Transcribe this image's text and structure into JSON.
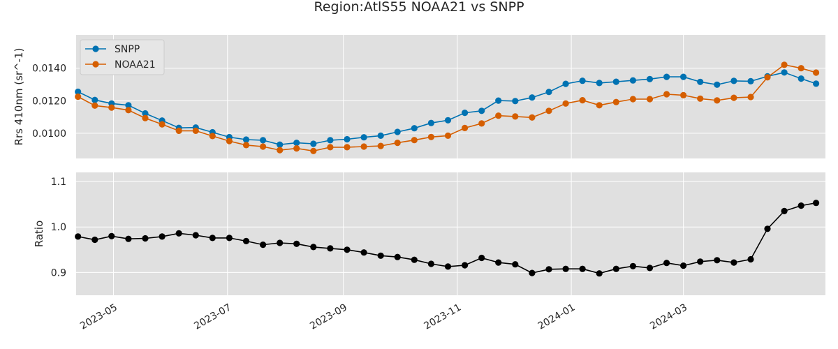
{
  "title": "Region:AtlS55 NOAA21 vs SNPP",
  "colors": {
    "panel_bg": "#e0e0e0",
    "grid": "#ffffff",
    "snpp": "#0072b2",
    "noaa21": "#d55e00",
    "ratio": "#000000"
  },
  "chart_data": [
    {
      "type": "line",
      "ylabel": "Rrs 410nm (sr^-1)",
      "yticks": [
        "0.0100",
        "0.0120",
        "0.0140"
      ],
      "ylim": [
        0.00845,
        0.01605
      ],
      "grid": true,
      "legend_position": "top-left",
      "x": [
        "2023-04-12",
        "2023-04-21",
        "2023-04-30",
        "2023-05-09",
        "2023-05-18",
        "2023-05-27",
        "2023-06-05",
        "2023-06-14",
        "2023-06-23",
        "2023-07-02",
        "2023-07-11",
        "2023-07-20",
        "2023-07-29",
        "2023-08-07",
        "2023-08-16",
        "2023-08-25",
        "2023-09-03",
        "2023-09-12",
        "2023-09-21",
        "2023-09-30",
        "2023-10-09",
        "2023-10-18",
        "2023-10-27",
        "2023-11-05",
        "2023-11-14",
        "2023-11-23",
        "2023-12-02",
        "2023-12-11",
        "2023-12-20",
        "2023-12-29",
        "2024-01-07",
        "2024-01-16",
        "2024-01-25",
        "2024-02-03",
        "2024-02-12",
        "2024-02-21",
        "2024-03-01",
        "2024-03-10",
        "2024-03-19",
        "2024-03-28",
        "2024-04-06",
        "2024-04-15",
        "2024-04-24",
        "2024-05-03",
        "2024-05-11"
      ],
      "series": [
        {
          "name": "SNPP",
          "color": "#0072b2",
          "values": [
            0.01255,
            0.01205,
            0.01183,
            0.01172,
            0.01122,
            0.01078,
            0.01033,
            0.01035,
            0.01006,
            0.00976,
            0.00961,
            0.00957,
            0.0093,
            0.00941,
            0.00935,
            0.00957,
            0.00963,
            0.00975,
            0.00985,
            0.01008,
            0.01031,
            0.01063,
            0.0108,
            0.01126,
            0.01138,
            0.01201,
            0.01198,
            0.0122,
            0.01254,
            0.01304,
            0.01323,
            0.01309,
            0.01317,
            0.01325,
            0.01333,
            0.01347,
            0.01347,
            0.01316,
            0.01299,
            0.01322,
            0.0132,
            0.0135,
            0.01374,
            0.01336,
            0.01305
          ]
        },
        {
          "name": "NOAA21",
          "color": "#d55e00",
          "values": [
            0.01225,
            0.0117,
            0.01158,
            0.01142,
            0.01093,
            0.01055,
            0.01015,
            0.01015,
            0.00983,
            0.00952,
            0.00927,
            0.00918,
            0.00896,
            0.00907,
            0.00891,
            0.00914,
            0.00914,
            0.00918,
            0.00922,
            0.00941,
            0.00958,
            0.00977,
            0.00985,
            0.01032,
            0.0106,
            0.01108,
            0.01103,
            0.01097,
            0.01138,
            0.01183,
            0.01203,
            0.01172,
            0.01192,
            0.0121,
            0.0121,
            0.0124,
            0.01234,
            0.01213,
            0.01202,
            0.01218,
            0.01223,
            0.01344,
            0.01421,
            0.014,
            0.01373
          ]
        }
      ]
    },
    {
      "type": "line",
      "ylabel": "Ratio",
      "yticks": [
        "0.9",
        "1.0",
        "1.1"
      ],
      "ylim": [
        0.85,
        1.12
      ],
      "grid": true,
      "x": [
        "2023-04-12",
        "2023-04-21",
        "2023-04-30",
        "2023-05-09",
        "2023-05-18",
        "2023-05-27",
        "2023-06-05",
        "2023-06-14",
        "2023-06-23",
        "2023-07-02",
        "2023-07-11",
        "2023-07-20",
        "2023-07-29",
        "2023-08-07",
        "2023-08-16",
        "2023-08-25",
        "2023-09-03",
        "2023-09-12",
        "2023-09-21",
        "2023-09-30",
        "2023-10-09",
        "2023-10-18",
        "2023-10-27",
        "2023-11-05",
        "2023-11-14",
        "2023-11-23",
        "2023-12-02",
        "2023-12-11",
        "2023-12-20",
        "2023-12-29",
        "2024-01-07",
        "2024-01-16",
        "2024-01-25",
        "2024-02-03",
        "2024-02-12",
        "2024-02-21",
        "2024-03-01",
        "2024-03-10",
        "2024-03-19",
        "2024-03-28",
        "2024-04-06",
        "2024-04-15",
        "2024-04-24",
        "2024-05-03",
        "2024-05-11"
      ],
      "series": [
        {
          "color": "#000000",
          "values": [
            0.979,
            0.972,
            0.98,
            0.974,
            0.975,
            0.979,
            0.986,
            0.982,
            0.976,
            0.976,
            0.969,
            0.961,
            0.965,
            0.963,
            0.956,
            0.953,
            0.95,
            0.944,
            0.937,
            0.934,
            0.928,
            0.919,
            0.913,
            0.916,
            0.932,
            0.922,
            0.918,
            0.899,
            0.907,
            0.908,
            0.908,
            0.898,
            0.908,
            0.914,
            0.91,
            0.921,
            0.915,
            0.924,
            0.927,
            0.922,
            0.929,
            0.996,
            1.035,
            1.047,
            1.053
          ]
        }
      ]
    }
  ],
  "xaxis": {
    "ticks": [
      {
        "date": "2023-05-01",
        "label": "2023-05"
      },
      {
        "date": "2023-07-01",
        "label": "2023-07"
      },
      {
        "date": "2023-09-01",
        "label": "2023-09"
      },
      {
        "date": "2023-11-01",
        "label": "2023-11"
      },
      {
        "date": "2024-01-01",
        "label": "2024-01"
      },
      {
        "date": "2024-03-01",
        "label": "2024-03"
      }
    ],
    "xlim": [
      "2023-04-11",
      "2024-05-16"
    ]
  }
}
